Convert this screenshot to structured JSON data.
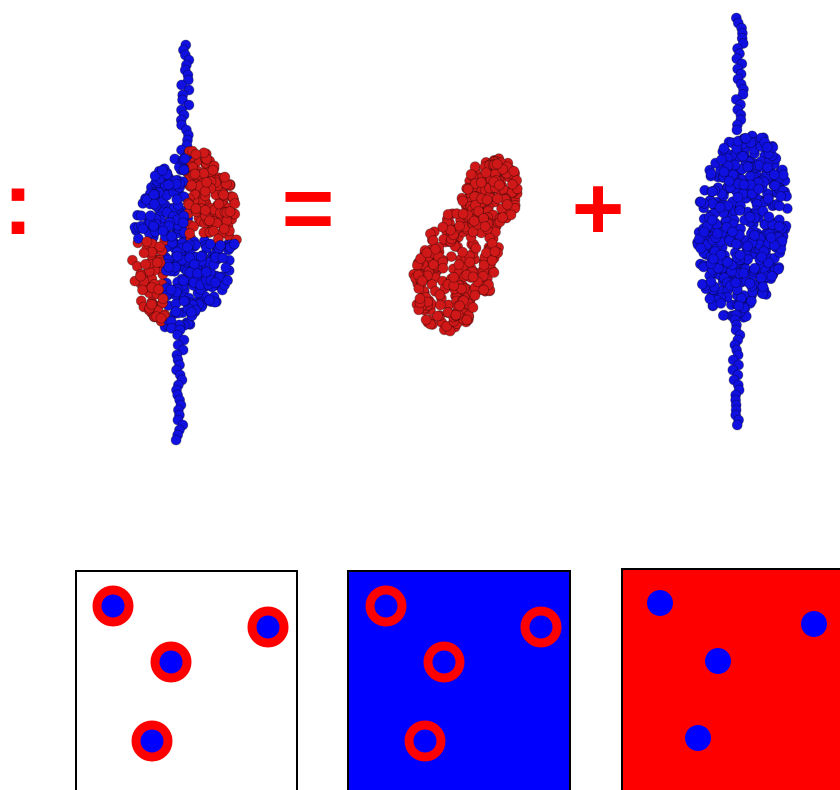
{
  "symbols": {
    "colon": ":",
    "equals": "=",
    "plus": "+"
  }
}
